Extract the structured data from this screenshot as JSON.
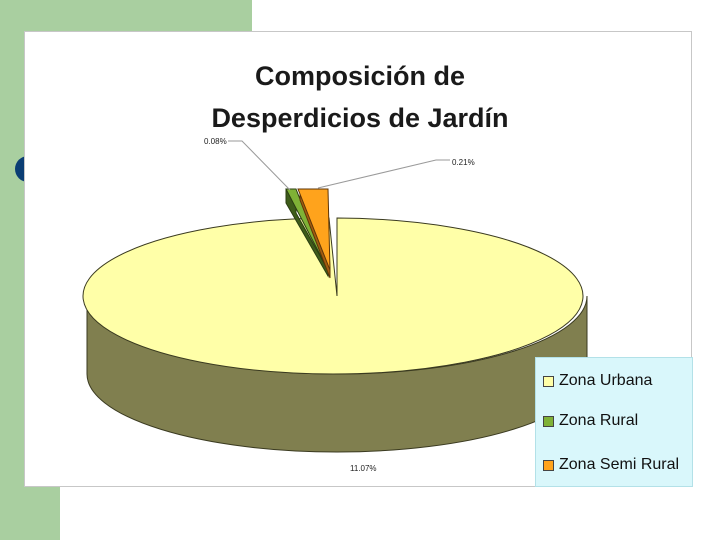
{
  "chart_data": {
    "type": "pie",
    "title": [
      "Composición de",
      "Desperdicios de Jardín"
    ],
    "categories": [
      "Zona Urbana",
      "Zona Rural",
      "Zona Semi Rural"
    ],
    "slices": [
      {
        "name": "Zona Urbana",
        "color": "#ffffa8",
        "side_color": "#807f4f",
        "data_label": "11.07%"
      },
      {
        "name": "Zona Rural",
        "color": "#7fb236",
        "side_color": "#3e5c1a",
        "data_label": "0.08%"
      },
      {
        "name": "Zona Semi Rural",
        "color": "#ffa31c",
        "side_color": "#a25d10",
        "data_label": "0.21%"
      }
    ],
    "legend_position": "bottom-right",
    "style": "3d-exploded"
  },
  "theme": {
    "slide_green": "#a9cfa0",
    "bullet_color": "#0b3e74",
    "legend_background": "#d9f7fb"
  }
}
